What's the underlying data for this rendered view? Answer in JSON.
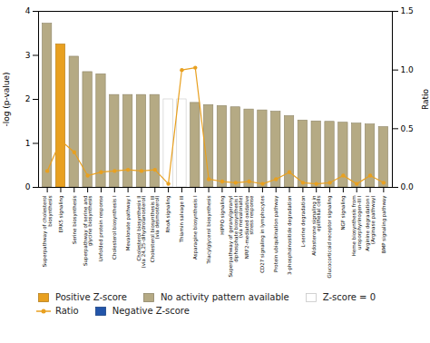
{
  "chart_data": {
    "type": "bar",
    "categories": [
      "Superpathway of cholesterol\nbiosynthesis",
      "ERK5 signaling",
      "Serine biosynthesis",
      "Superpathway of serine and\nglycine biosynthesis",
      "Unfolded protein response",
      "Cholesterol biosynthesis I",
      "Mevalonate pathway I",
      "Cholesterol biosynthesis II\n(via 24,25-dihydrolanosterol)",
      "Cholesterol biosynthesis III\n(via desmosterol)",
      "RhoA signaling",
      "Thiamin salvage III",
      "Asparagine biosynthesis I",
      "Triacylglycerol biosynthesis",
      "HIPPO signaling",
      "Superpathway of geranylgeranyl\ndiphosphate biosynthesis I\n(via mevalonate)",
      "NRF2-mediated oxidative\nstress response",
      "CD27 signaling in lymphocytes",
      "Protein ubiquitination pathway",
      "3-phosphoinositide degradation",
      "L-serine degradation",
      "Aldosterone signaling in\nepithelial cells",
      "Glucocorticoid receptor signaling",
      "NGF signaling",
      "Heme biosynthesis from\nuroporphyrinogen-III I",
      "Arginine degradation I\n(Arginase pathway)",
      "BMP signaling pathway"
    ],
    "series": [
      {
        "name": "Positive Z-score",
        "type": "bar",
        "color": "#e8a020",
        "values": [
          null,
          3.25,
          null,
          null,
          null,
          null,
          null,
          null,
          null,
          null,
          null,
          null,
          null,
          null,
          null,
          null,
          null,
          null,
          null,
          null,
          null,
          null,
          null,
          null,
          null,
          null
        ]
      },
      {
        "name": "No activity pattern available",
        "type": "bar",
        "color": "#b5aa84",
        "values": [
          3.72,
          null,
          2.97,
          2.62,
          2.57,
          2.1,
          2.1,
          2.1,
          2.1,
          null,
          null,
          1.92,
          1.87,
          1.85,
          1.82,
          1.77,
          1.75,
          1.72,
          1.62,
          1.52,
          1.5,
          1.49,
          1.47,
          1.45,
          1.43,
          1.37
        ]
      },
      {
        "name": "Z-score = 0",
        "type": "bar",
        "color": "#ffffff",
        "values": [
          null,
          null,
          null,
          null,
          null,
          null,
          null,
          null,
          null,
          2.0,
          2.0,
          null,
          null,
          null,
          null,
          null,
          null,
          null,
          null,
          null,
          null,
          null,
          null,
          null,
          null,
          null
        ]
      },
      {
        "name": "Ratio",
        "type": "line",
        "axis": "y2",
        "color": "#e8a020",
        "marker": "circle",
        "values": [
          0.14,
          0.4,
          0.3,
          0.1,
          0.13,
          0.14,
          0.15,
          0.14,
          0.15,
          0.03,
          1.0,
          1.02,
          0.07,
          0.05,
          0.04,
          0.05,
          0.03,
          0.07,
          0.13,
          0.04,
          0.03,
          0.04,
          0.1,
          0.03,
          0.1,
          0.04
        ]
      },
      {
        "name": "Negative Z-score",
        "type": "bar",
        "color": "#2255aa",
        "values": [
          null,
          null,
          null,
          null,
          null,
          null,
          null,
          null,
          null,
          null,
          null,
          null,
          null,
          null,
          null,
          null,
          null,
          null,
          null,
          null,
          null,
          null,
          null,
          null,
          null,
          null
        ]
      }
    ],
    "ylabel": "-log (p-value)",
    "y2label": "Ratio",
    "ylim": [
      0,
      4
    ],
    "yticks": [
      0,
      1,
      2,
      3,
      4
    ],
    "y2lim": [
      0,
      1.5
    ],
    "y2ticks": [
      {
        "value": 0,
        "label": "0.0"
      },
      0.5,
      {
        "value": 1,
        "label": "1.0"
      },
      1.5
    ],
    "grid": false
  }
}
